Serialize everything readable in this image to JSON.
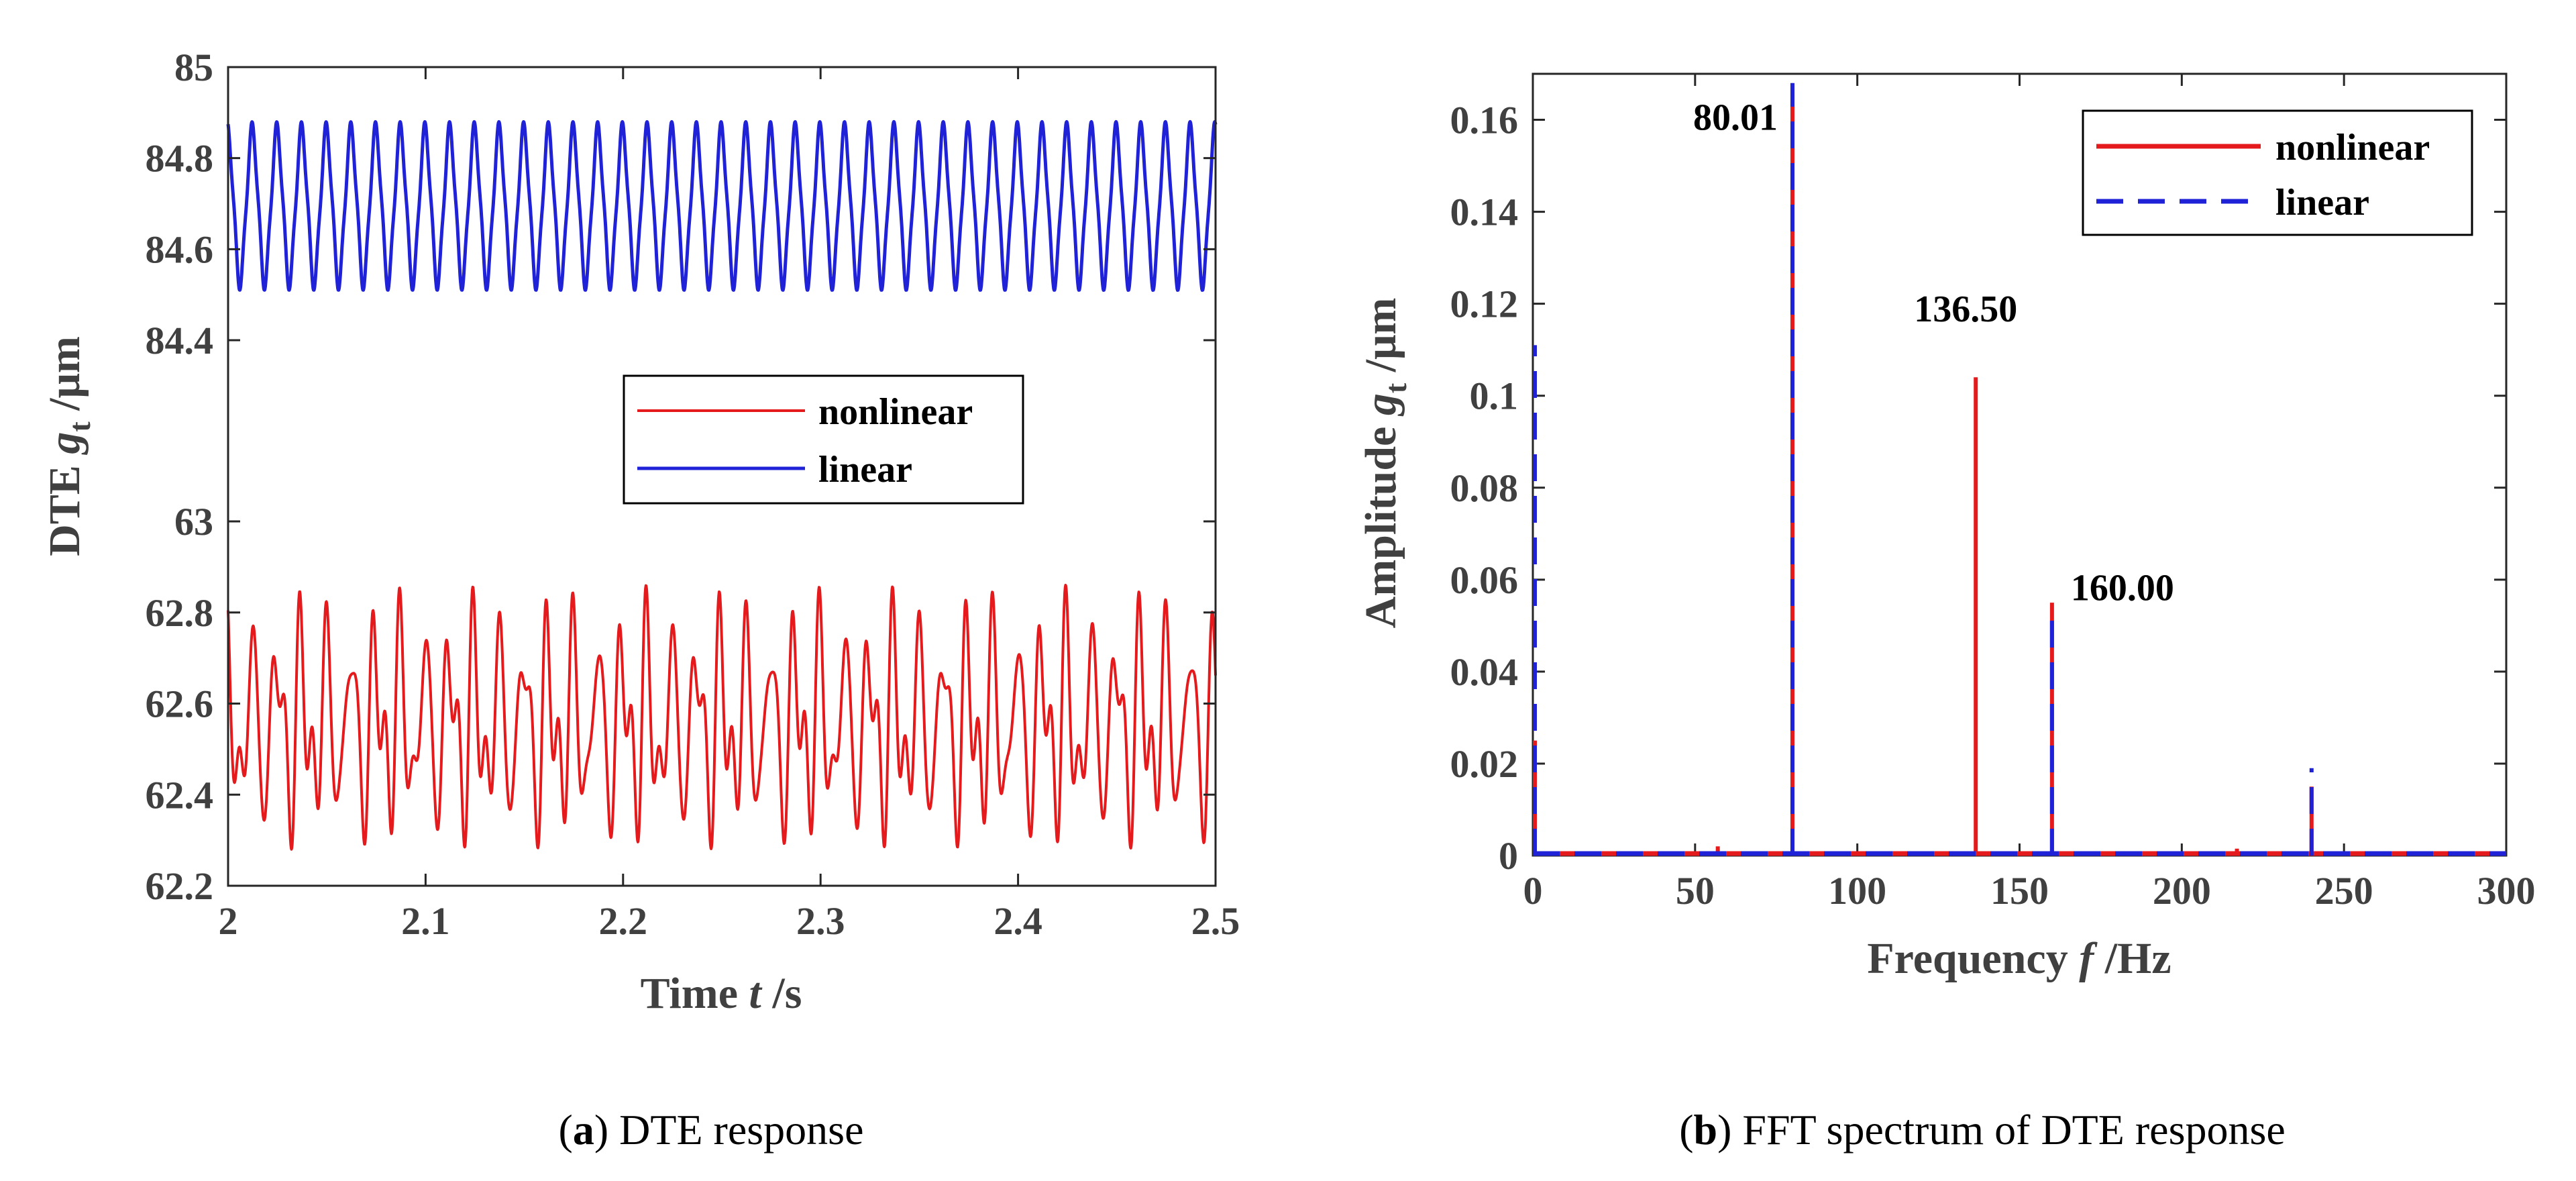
{
  "chart_data": [
    {
      "type": "line",
      "panel": "a",
      "caption": {
        "letter": "a",
        "text": "DTE response"
      },
      "xlabel": {
        "prefix": "Time ",
        "var": "t",
        "suffix": " /s"
      },
      "ylabel": {
        "prefix": "DTE ",
        "var": "g",
        "sub": "t",
        "suffix": " /μm"
      },
      "xlim": [
        2,
        2.5
      ],
      "x_ticks": [
        2,
        2.1,
        2.2,
        2.3,
        2.4,
        2.5
      ],
      "x_tick_labels": [
        "2",
        "2.1",
        "2.2",
        "2.3",
        "2.4",
        "2.5"
      ],
      "y_axis_broken": true,
      "y_segments": [
        {
          "range": [
            62.2,
            63.0
          ],
          "ticks": [
            "62.2",
            "62.4",
            "62.6",
            "62.8",
            "63"
          ]
        },
        {
          "range": [
            84.2,
            85.0
          ],
          "ticks": [
            "84.4",
            "84.6",
            "84.8",
            "85"
          ]
        }
      ],
      "series": [
        {
          "name": "nonlinear",
          "color": "#e41a1c",
          "style": "solid",
          "description": "quasi-periodic oscillation around 62.55",
          "mean": 62.56,
          "min": 62.28,
          "max": 62.86,
          "components": [
            {
              "freq_hz": 80.01,
              "amplitude": 0.17
            },
            {
              "freq_hz": 136.5,
              "amplitude": 0.104
            },
            {
              "freq_hz": 160.0,
              "amplitude": 0.055
            }
          ]
        },
        {
          "name": "linear",
          "color": "#1f22d6",
          "style": "solid",
          "description": "periodic oscillation between 84.51 and 84.88",
          "mean": 84.695,
          "min": 84.51,
          "max": 84.88,
          "components": [
            {
              "freq_hz": 80.01,
              "amplitude": 0.168
            },
            {
              "freq_hz": 240.0,
              "amplitude": 0.019
            }
          ]
        }
      ],
      "legend": {
        "position": "center-right",
        "entries": [
          "nonlinear",
          "linear"
        ]
      }
    },
    {
      "type": "line",
      "panel": "b",
      "caption": {
        "letter": "b",
        "text": "FFT spectrum of DTE response"
      },
      "xlabel": {
        "prefix": "Frequency ",
        "var": "f",
        "suffix": " /Hz"
      },
      "ylabel": {
        "prefix": "Amplitude ",
        "var": "g",
        "sub": "t",
        "suffix": " /μm"
      },
      "xlim": [
        0,
        300
      ],
      "ylim": [
        0,
        0.17
      ],
      "x_ticks": [
        0,
        50,
        100,
        150,
        200,
        250,
        300
      ],
      "x_tick_labels": [
        "0",
        "50",
        "100",
        "150",
        "200",
        "250",
        "300"
      ],
      "y_ticks": [
        0,
        0.02,
        0.04,
        0.06,
        0.08,
        0.1,
        0.12,
        0.14,
        0.16
      ],
      "y_tick_labels": [
        "0",
        "0.02",
        "0.04",
        "0.06",
        "0.08",
        "0.1",
        "0.12",
        "0.14",
        "0.16"
      ],
      "series": [
        {
          "name": "nonlinear",
          "color": "#e41a1c",
          "style": "solid",
          "peaks": [
            {
              "f": 0,
              "a": 0.025
            },
            {
              "f": 57,
              "a": 0.002
            },
            {
              "f": 80.01,
              "a": 0.167
            },
            {
              "f": 136.5,
              "a": 0.104
            },
            {
              "f": 160.0,
              "a": 0.055
            },
            {
              "f": 217,
              "a": 0.0015
            },
            {
              "f": 240,
              "a": 0.015
            }
          ]
        },
        {
          "name": "linear",
          "color": "#1f22d6",
          "style": "dashed",
          "peaks": [
            {
              "f": 0,
              "a": 0.111
            },
            {
              "f": 80.01,
              "a": 0.168
            },
            {
              "f": 160.0,
              "a": 0.054
            },
            {
              "f": 240,
              "a": 0.019
            }
          ]
        }
      ],
      "annotations": [
        {
          "text": "80.01",
          "f": 80.01,
          "a": 0.16
        },
        {
          "text": "136.50",
          "f": 136.5,
          "a": 0.115
        },
        {
          "text": "160.00",
          "f": 160.0,
          "a": 0.057
        }
      ],
      "legend": {
        "position": "top-right",
        "entries": [
          "nonlinear",
          "linear"
        ]
      }
    }
  ]
}
